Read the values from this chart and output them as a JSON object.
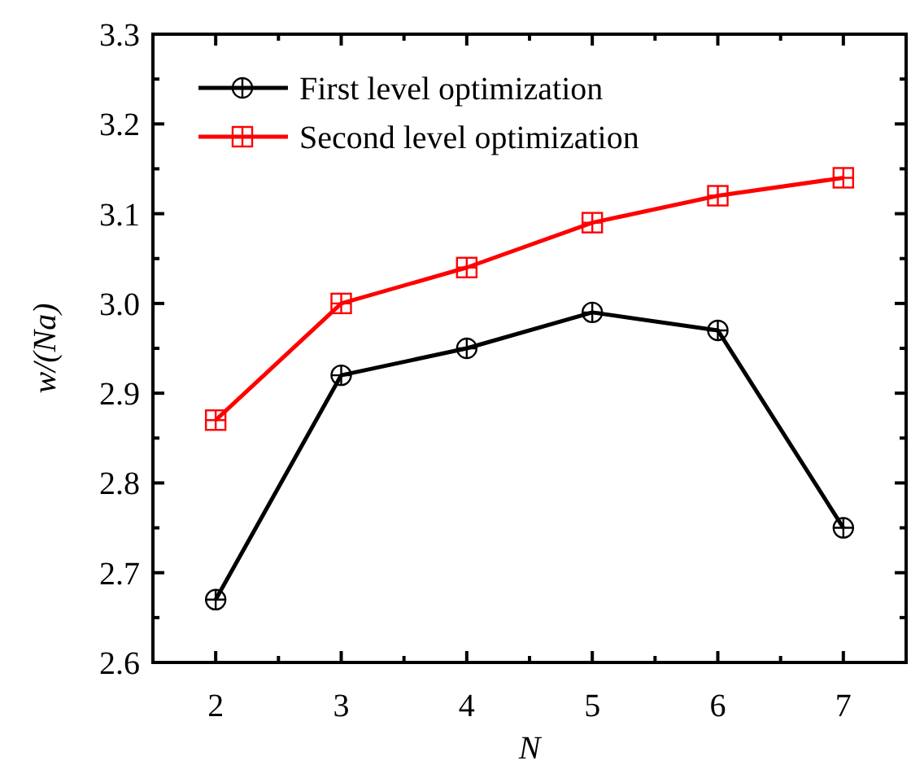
{
  "chart_data": {
    "type": "line",
    "xlabel": "N",
    "ylabel": "w/(Na)",
    "x": [
      2,
      3,
      4,
      5,
      6,
      7
    ],
    "series": [
      {
        "name": "First level optimization",
        "color": "#000000",
        "marker": "circle",
        "values": [
          2.67,
          2.92,
          2.95,
          2.99,
          2.97,
          2.75
        ]
      },
      {
        "name": "Second level optimization",
        "color": "#ff0000",
        "marker": "square",
        "values": [
          2.87,
          3.0,
          3.04,
          3.09,
          3.12,
          3.14
        ]
      }
    ],
    "xlim": [
      1.5,
      7.5
    ],
    "xticks": [
      2,
      {
        "value": 2.5,
        "label": null
      },
      3,
      {
        "value": 3.5,
        "label": null
      },
      4,
      {
        "value": 4.5,
        "label": null
      },
      5,
      {
        "value": 5.5,
        "label": null
      },
      6,
      {
        "value": 6.5,
        "label": null
      },
      7
    ],
    "ylim": [
      2.6,
      3.3
    ],
    "yticks": [
      {
        "value": 2.6,
        "label": "2.6"
      },
      {
        "value": 2.65,
        "label": null
      },
      {
        "value": 2.7,
        "label": "2.7"
      },
      {
        "value": 2.75,
        "label": null
      },
      {
        "value": 2.8,
        "label": "2.8"
      },
      {
        "value": 2.85,
        "label": null
      },
      {
        "value": 2.9,
        "label": "2.9"
      },
      {
        "value": 2.95,
        "label": null
      },
      {
        "value": 3.0,
        "label": "3.0"
      },
      {
        "value": 3.05,
        "label": null
      },
      {
        "value": 3.1,
        "label": "3.1"
      },
      {
        "value": 3.15,
        "label": null
      },
      {
        "value": 3.2,
        "label": "3.2"
      },
      {
        "value": 3.25,
        "label": null
      },
      {
        "value": 3.3,
        "label": "3.3"
      }
    ],
    "grid": false,
    "legend": "top left",
    "line_style": "solid"
  }
}
